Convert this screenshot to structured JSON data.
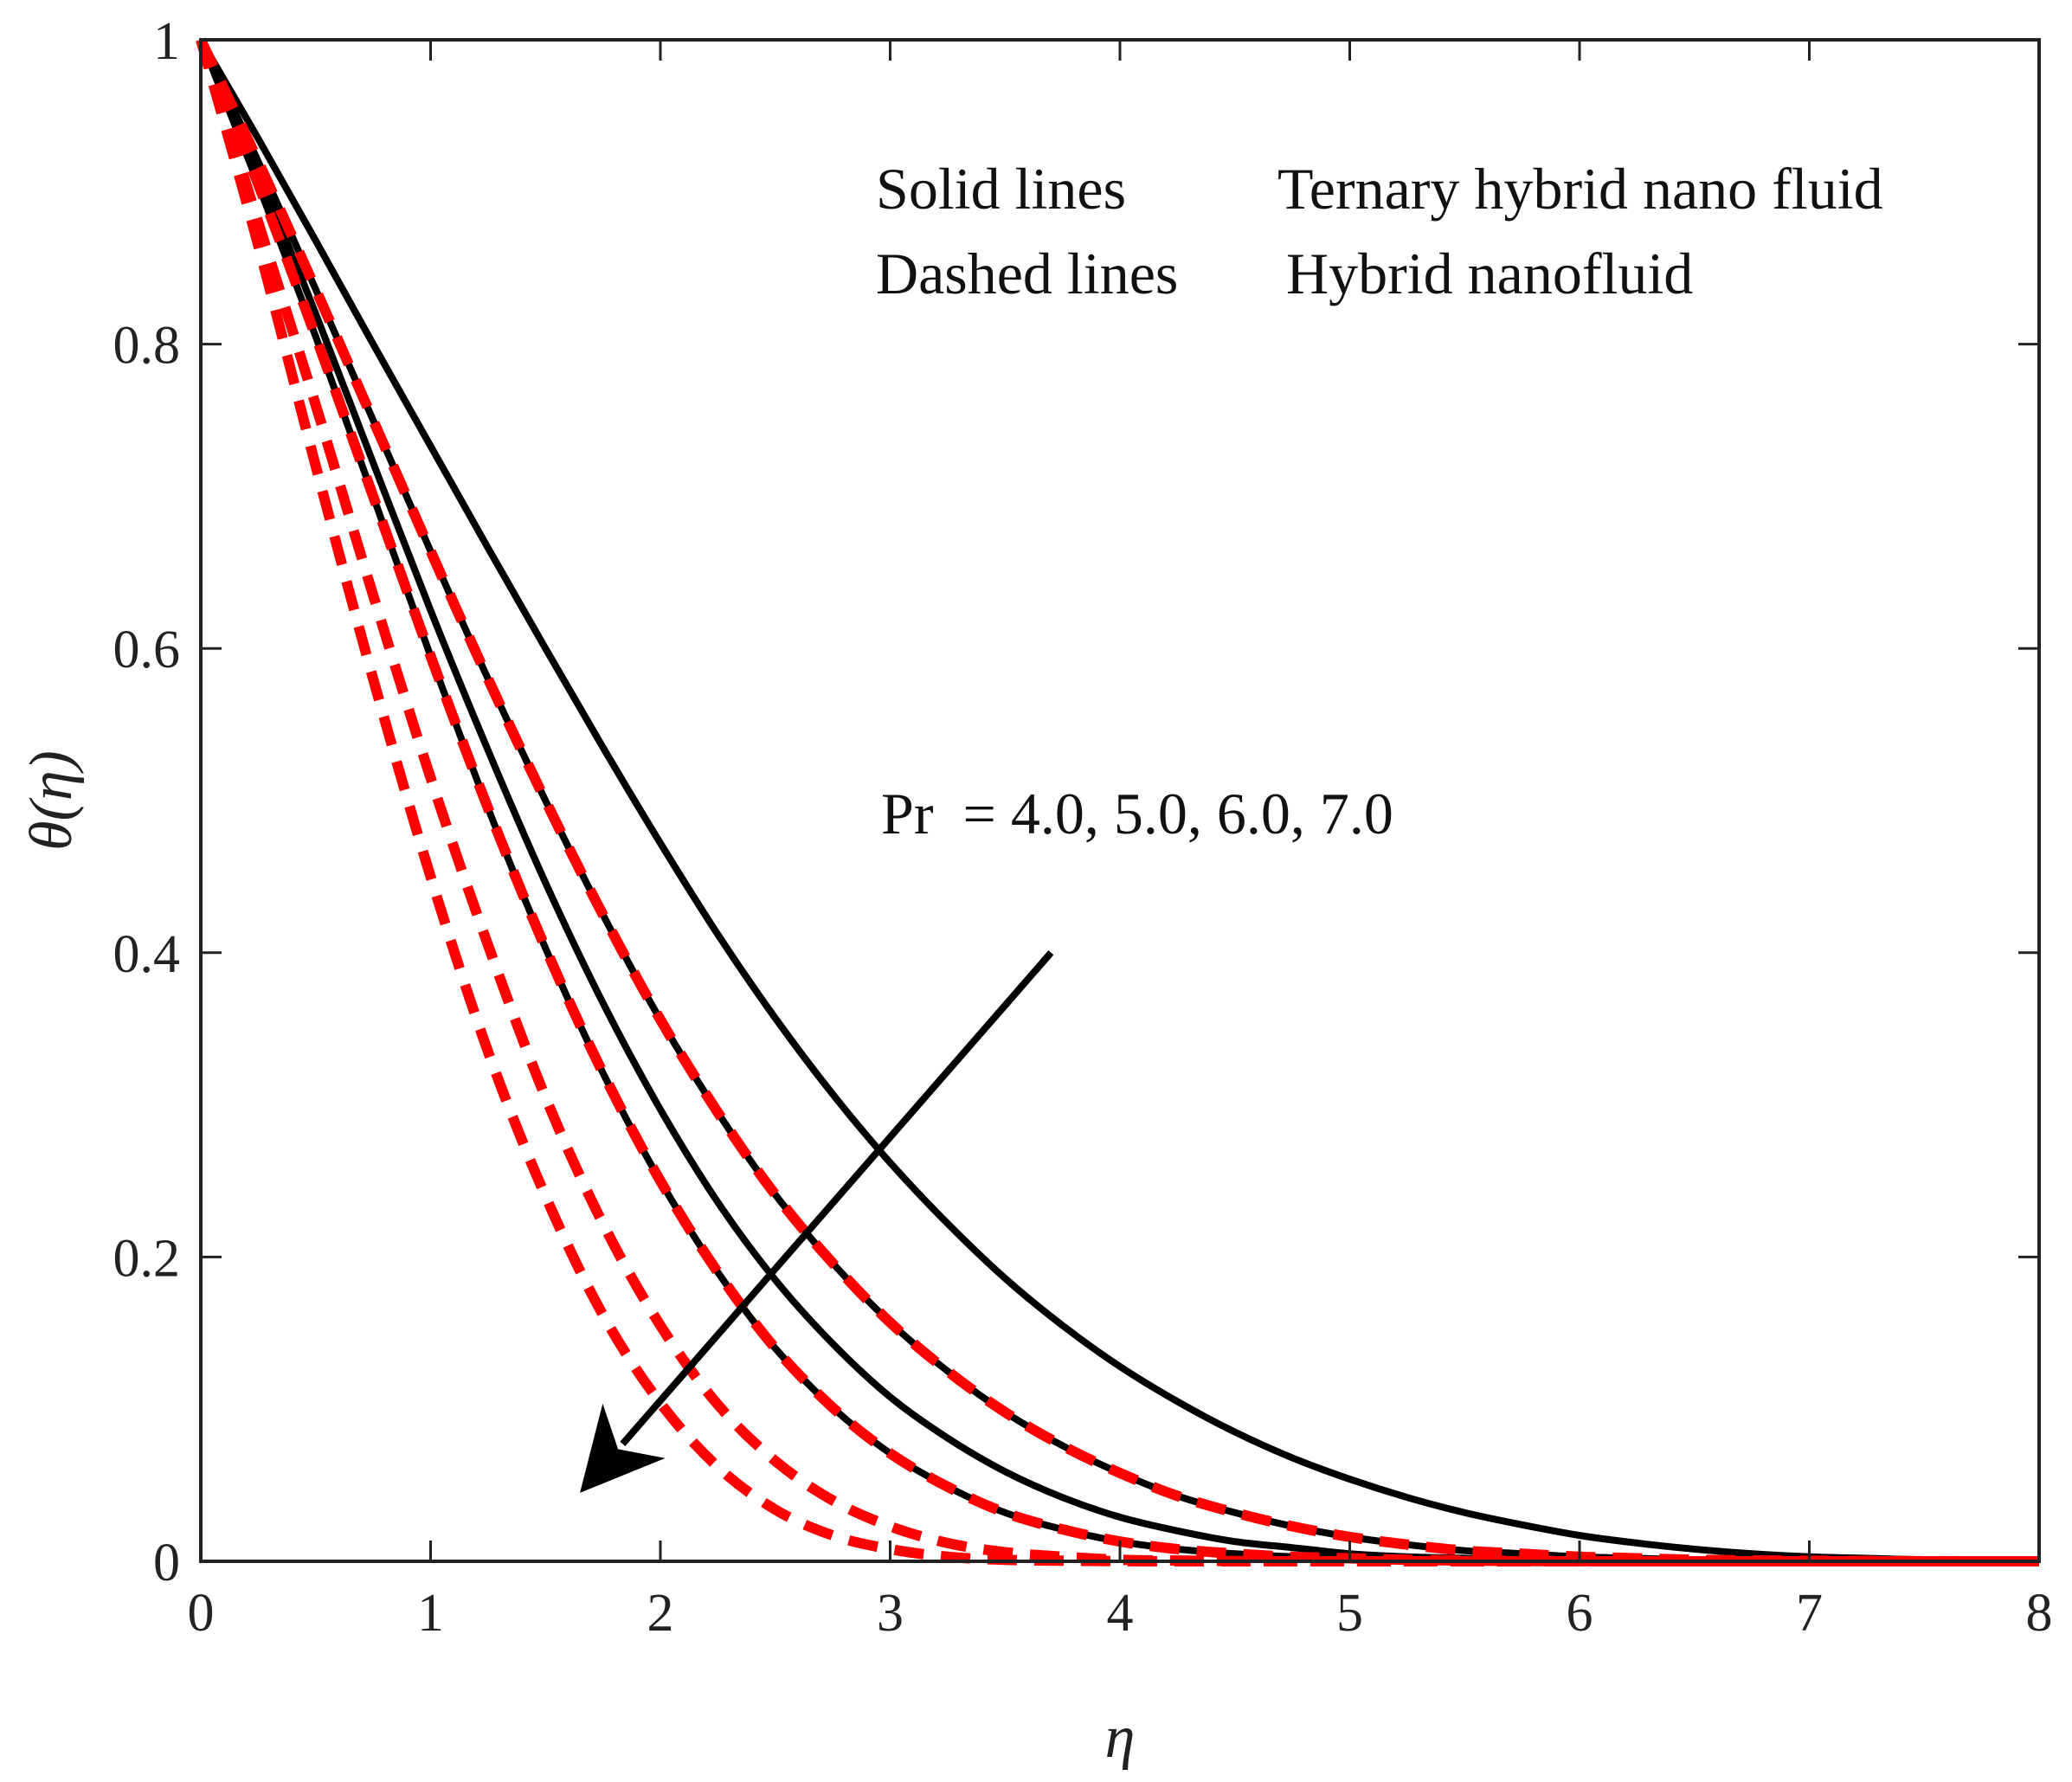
{
  "chart_data": {
    "type": "line",
    "title": "",
    "xlabel": "η",
    "ylabel": "θ(η)",
    "xlim": [
      0,
      8
    ],
    "ylim": [
      0,
      1
    ],
    "x_ticks": [
      0,
      1,
      2,
      3,
      4,
      5,
      6,
      7,
      8
    ],
    "x_tick_labels": [
      "0",
      "1",
      "2",
      "3",
      "4",
      "5",
      "6",
      "7",
      "8"
    ],
    "y_ticks": [
      0,
      0.2,
      0.4,
      0.6,
      0.8,
      1
    ],
    "y_tick_labels": [
      "0",
      "0.2",
      "0.4",
      "0.6",
      "0.8",
      "1"
    ],
    "grid": false,
    "annotations": {
      "legend_solid_key": "Solid lines",
      "legend_solid_value": "Ternary hybrid nano fluid",
      "legend_dashed_key": "Dashed lines",
      "legend_dashed_value": "Hybrid nanofluid",
      "parameter": "Pr  = 4.0, 5.0, 6.0, 7.0",
      "arrow_direction": "increasing Pr",
      "arrow_start": [
        3.7,
        0.4
      ],
      "arrow_end": [
        1.65,
        0.045
      ]
    },
    "x": [
      0,
      0.25,
      0.5,
      0.75,
      1,
      1.25,
      1.5,
      1.75,
      2,
      2.25,
      2.5,
      2.75,
      3,
      3.25,
      3.5,
      3.75,
      4,
      4.25,
      4.5,
      4.75,
      5,
      5.25,
      5.5,
      5.75,
      6,
      6.25,
      6.5,
      6.75,
      7,
      7.25,
      7.5,
      7.75,
      8
    ],
    "series": [
      {
        "name": "Ternary hybrid nano fluid, Pr = 4.0",
        "style": "solid",
        "color": "#000000",
        "values": [
          1,
          0.935,
          0.868,
          0.8,
          0.733,
          0.666,
          0.6,
          0.535,
          0.472,
          0.412,
          0.357,
          0.307,
          0.262,
          0.222,
          0.186,
          0.155,
          0.128,
          0.105,
          0.085,
          0.068,
          0.054,
          0.042,
          0.032,
          0.024,
          0.017,
          0.012,
          0.008,
          0.005,
          0.003,
          0.002,
          0.001,
          0.0005,
          0
        ]
      },
      {
        "name": "Ternary hybrid nano fluid, Pr = 5.0",
        "style": "solid",
        "color": "#000000",
        "values": [
          1,
          0.92,
          0.836,
          0.75,
          0.664,
          0.58,
          0.5,
          0.425,
          0.356,
          0.295,
          0.241,
          0.196,
          0.157,
          0.125,
          0.098,
          0.076,
          0.058,
          0.043,
          0.032,
          0.023,
          0.016,
          0.011,
          0.007,
          0.005,
          0.003,
          0.002,
          0.001,
          0.0006,
          0.0003,
          0.0002,
          0.0001,
          0,
          0
        ]
      },
      {
        "name": "Ternary hybrid nano fluid, Pr = 6.0",
        "style": "solid",
        "color": "#000000",
        "values": [
          1,
          0.913,
          0.82,
          0.722,
          0.625,
          0.533,
          0.446,
          0.367,
          0.297,
          0.236,
          0.185,
          0.143,
          0.108,
          0.081,
          0.059,
          0.042,
          0.029,
          0.02,
          0.013,
          0.009,
          0.005,
          0.003,
          0.002,
          0.001,
          0.0006,
          0.0003,
          0.0001,
          0,
          0,
          0,
          0,
          0,
          0
        ]
      },
      {
        "name": "Ternary hybrid nano fluid, Pr = 7.0",
        "style": "solid",
        "color": "#000000",
        "values": [
          1,
          0.905,
          0.805,
          0.7,
          0.595,
          0.495,
          0.403,
          0.321,
          0.25,
          0.19,
          0.14,
          0.101,
          0.071,
          0.049,
          0.032,
          0.021,
          0.013,
          0.008,
          0.005,
          0.003,
          0.002,
          0.001,
          0.0005,
          0.0002,
          0.0001,
          0,
          0,
          0,
          0,
          0,
          0,
          0,
          0
        ]
      },
      {
        "name": "Hybrid nanofluid, Pr = 4.0",
        "style": "dashed",
        "color": "#ff0000",
        "values": [
          1,
          0.92,
          0.836,
          0.75,
          0.664,
          0.58,
          0.5,
          0.425,
          0.356,
          0.295,
          0.241,
          0.196,
          0.157,
          0.125,
          0.098,
          0.076,
          0.058,
          0.043,
          0.032,
          0.023,
          0.016,
          0.011,
          0.007,
          0.005,
          0.003,
          0.002,
          0.001,
          0.0006,
          0.0003,
          0.0002,
          0.0001,
          0,
          0
        ]
      },
      {
        "name": "Hybrid nanofluid, Pr = 5.0",
        "style": "dashed",
        "color": "#ff0000",
        "values": [
          1,
          0.905,
          0.805,
          0.7,
          0.595,
          0.495,
          0.403,
          0.321,
          0.25,
          0.19,
          0.14,
          0.101,
          0.071,
          0.049,
          0.032,
          0.021,
          0.013,
          0.008,
          0.005,
          0.003,
          0.002,
          0.001,
          0.0005,
          0.0002,
          0.0001,
          0,
          0,
          0,
          0,
          0,
          0,
          0,
          0
        ]
      },
      {
        "name": "Hybrid nanofluid, Pr = 6.0",
        "style": "dashed",
        "color": "#ff0000",
        "values": [
          1,
          0.88,
          0.76,
          0.635,
          0.515,
          0.405,
          0.305,
          0.222,
          0.155,
          0.103,
          0.066,
          0.04,
          0.023,
          0.012,
          0.006,
          0.003,
          0.001,
          0.0005,
          0.0002,
          0,
          0,
          0,
          0,
          0,
          0,
          0,
          0,
          0,
          0,
          0,
          0,
          0,
          0
        ]
      },
      {
        "name": "Hybrid nanofluid, Pr = 7.0",
        "style": "dashed",
        "color": "#ff0000",
        "values": [
          1,
          0.865,
          0.72,
          0.58,
          0.45,
          0.335,
          0.24,
          0.162,
          0.104,
          0.062,
          0.034,
          0.017,
          0.008,
          0.003,
          0.001,
          0.0004,
          0.0001,
          0,
          0,
          0,
          0,
          0,
          0,
          0,
          0,
          0,
          0,
          0,
          0,
          0,
          0,
          0,
          0
        ]
      }
    ]
  }
}
